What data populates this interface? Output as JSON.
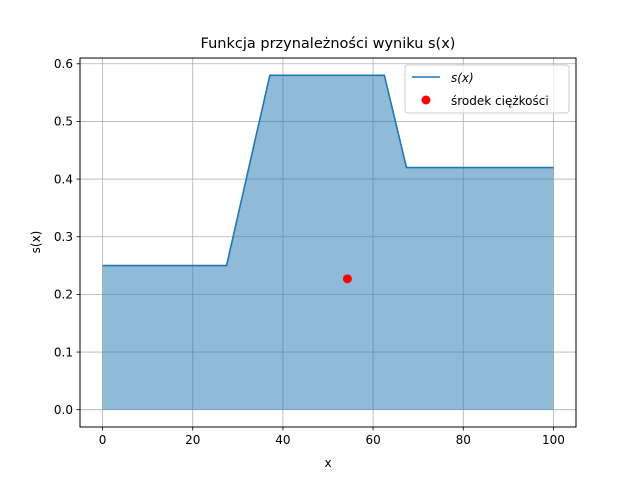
{
  "chart_data": {
    "type": "area",
    "title": "Funkcja przynależności wyniku s(x)",
    "xlabel": "x",
    "ylabel": "s(x)",
    "xlim": [
      -5,
      105
    ],
    "ylim": [
      -0.03,
      0.61
    ],
    "xticks": [
      0,
      20,
      40,
      60,
      80,
      100
    ],
    "yticks": [
      0.0,
      0.1,
      0.2,
      0.3,
      0.4,
      0.5,
      0.6
    ],
    "xtick_labels": [
      "0",
      "20",
      "40",
      "60",
      "80",
      "100"
    ],
    "ytick_labels": [
      "0.0",
      "0.1",
      "0.2",
      "0.3",
      "0.4",
      "0.5",
      "0.6"
    ],
    "grid": true,
    "legend_position": "top-right",
    "series": [
      {
        "name": "s(x)",
        "kind": "line-with-fill",
        "color": "#1f77b4",
        "fill_color": "#1f77b4",
        "fill_opacity": 0.5,
        "x": [
          0,
          27.5,
          37.1,
          62.5,
          67.4,
          100
        ],
        "y": [
          0.25,
          0.25,
          0.58,
          0.58,
          0.42,
          0.42
        ]
      },
      {
        "name": "środek ciężkości",
        "kind": "scatter",
        "color": "#ff0000",
        "x": [
          54.3
        ],
        "y": [
          0.227
        ]
      }
    ]
  }
}
